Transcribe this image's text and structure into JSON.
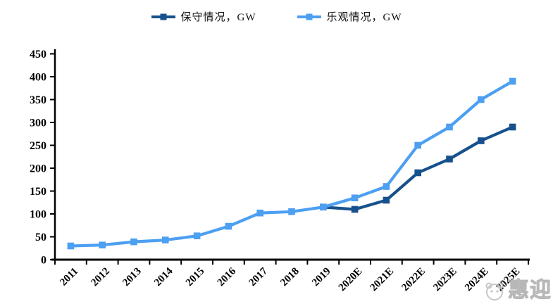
{
  "legend": [
    {
      "label": "保守情况，GW",
      "color": "#17518D"
    },
    {
      "label": "乐观情况，GW",
      "color": "#4D9FF2"
    }
  ],
  "chart_data": {
    "type": "line",
    "title": "",
    "xlabel": "",
    "ylabel": "",
    "categories": [
      "2011",
      "2012",
      "2013",
      "2014",
      "2015",
      "2016",
      "2017",
      "2018",
      "2019",
      "2020E",
      "2021E",
      "2022E",
      "2023E",
      "2024E",
      "2025E"
    ],
    "series": [
      {
        "name": "保守情况，GW",
        "color": "#17518D",
        "marker": "square",
        "values": [
          null,
          null,
          null,
          null,
          null,
          null,
          null,
          null,
          115,
          110,
          130,
          190,
          220,
          260,
          290
        ]
      },
      {
        "name": "乐观情况，GW",
        "color": "#4D9FF2",
        "marker": "square",
        "values": [
          30,
          32,
          39,
          43,
          52,
          73,
          102,
          105,
          115,
          135,
          160,
          250,
          290,
          350,
          390
        ]
      }
    ],
    "ylim": [
      0,
      450
    ],
    "ytick_step": 50,
    "yticks": [
      0,
      50,
      100,
      150,
      200,
      250,
      300,
      350,
      400,
      450
    ],
    "grid": false,
    "legend_position": "top-center"
  },
  "watermark": {
    "text": "惠迎",
    "color": "#cfcfcf"
  }
}
